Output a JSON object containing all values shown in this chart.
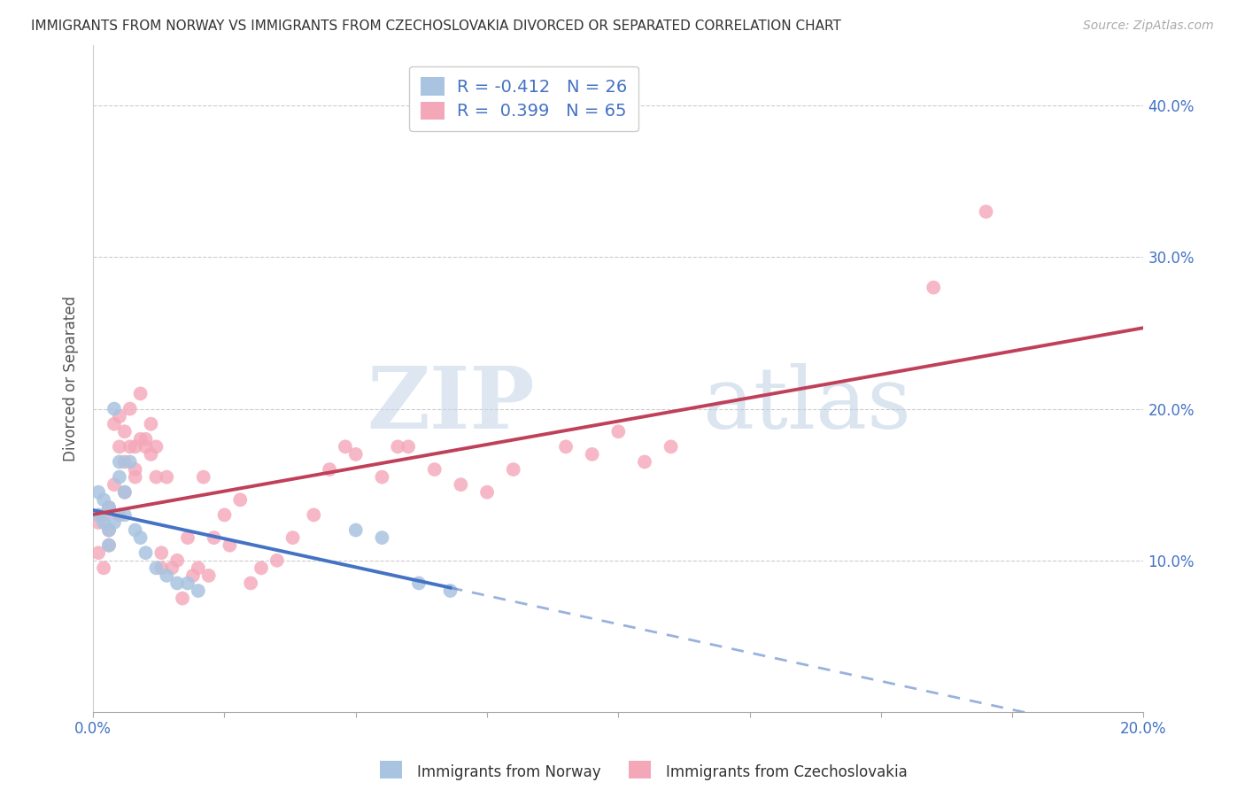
{
  "title": "IMMIGRANTS FROM NORWAY VS IMMIGRANTS FROM CZECHOSLOVAKIA DIVORCED OR SEPARATED CORRELATION CHART",
  "source": "Source: ZipAtlas.com",
  "ylabel": "Divorced or Separated",
  "x_label_norway": "Immigrants from Norway",
  "x_label_czech": "Immigrants from Czechoslovakia",
  "xlim": [
    0.0,
    0.2
  ],
  "ylim": [
    0.0,
    0.44
  ],
  "yticks": [
    0.1,
    0.2,
    0.3,
    0.4
  ],
  "xticks": [
    0.0,
    0.2
  ],
  "r_norway": -0.412,
  "n_norway": 26,
  "r_czech": 0.399,
  "n_czech": 65,
  "color_norway": "#a8c4e0",
  "color_czech": "#f4a7b9",
  "line_color_norway": "#4472c4",
  "line_color_czech": "#c0405a",
  "watermark_zip": "ZIP",
  "watermark_atlas": "atlas",
  "norway_x": [
    0.001,
    0.001,
    0.002,
    0.002,
    0.003,
    0.003,
    0.003,
    0.004,
    0.004,
    0.005,
    0.005,
    0.006,
    0.006,
    0.007,
    0.008,
    0.009,
    0.01,
    0.012,
    0.014,
    0.016,
    0.018,
    0.02,
    0.05,
    0.055,
    0.062,
    0.068
  ],
  "norway_y": [
    0.13,
    0.145,
    0.125,
    0.14,
    0.12,
    0.135,
    0.11,
    0.125,
    0.2,
    0.155,
    0.165,
    0.13,
    0.145,
    0.165,
    0.12,
    0.115,
    0.105,
    0.095,
    0.09,
    0.085,
    0.085,
    0.08,
    0.12,
    0.115,
    0.085,
    0.08
  ],
  "czech_x": [
    0.001,
    0.001,
    0.002,
    0.002,
    0.003,
    0.003,
    0.003,
    0.004,
    0.004,
    0.005,
    0.005,
    0.005,
    0.006,
    0.006,
    0.006,
    0.007,
    0.007,
    0.008,
    0.008,
    0.008,
    0.009,
    0.009,
    0.01,
    0.01,
    0.011,
    0.011,
    0.012,
    0.012,
    0.013,
    0.013,
    0.014,
    0.015,
    0.016,
    0.017,
    0.018,
    0.019,
    0.02,
    0.021,
    0.022,
    0.023,
    0.025,
    0.026,
    0.028,
    0.03,
    0.032,
    0.035,
    0.038,
    0.042,
    0.045,
    0.048,
    0.05,
    0.055,
    0.058,
    0.06,
    0.065,
    0.07,
    0.075,
    0.08,
    0.09,
    0.095,
    0.1,
    0.105,
    0.11,
    0.16,
    0.17
  ],
  "czech_y": [
    0.125,
    0.105,
    0.13,
    0.095,
    0.135,
    0.12,
    0.11,
    0.15,
    0.19,
    0.195,
    0.175,
    0.13,
    0.165,
    0.185,
    0.145,
    0.175,
    0.2,
    0.16,
    0.155,
    0.175,
    0.21,
    0.18,
    0.18,
    0.175,
    0.17,
    0.19,
    0.155,
    0.175,
    0.095,
    0.105,
    0.155,
    0.095,
    0.1,
    0.075,
    0.115,
    0.09,
    0.095,
    0.155,
    0.09,
    0.115,
    0.13,
    0.11,
    0.14,
    0.085,
    0.095,
    0.1,
    0.115,
    0.13,
    0.16,
    0.175,
    0.17,
    0.155,
    0.175,
    0.175,
    0.16,
    0.15,
    0.145,
    0.16,
    0.175,
    0.17,
    0.185,
    0.165,
    0.175,
    0.28,
    0.33
  ]
}
